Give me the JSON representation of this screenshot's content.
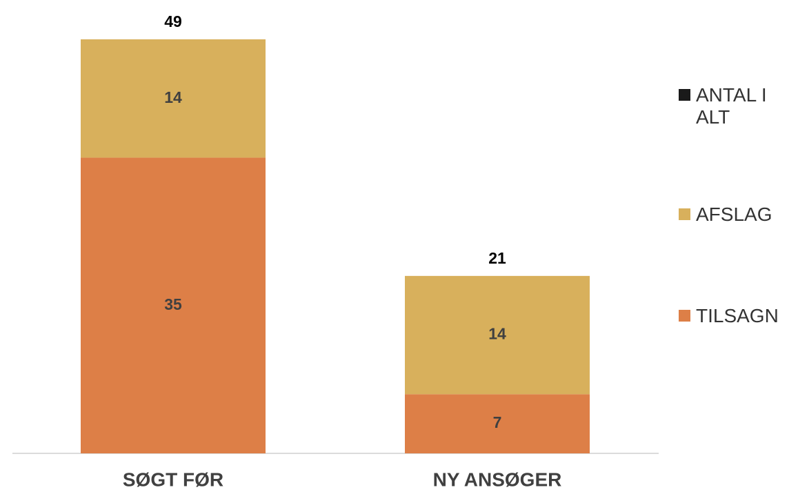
{
  "chart_data": {
    "type": "stacked_bar",
    "categories": [
      "SØGT FØR",
      "NY ANSØGER"
    ],
    "series": [
      {
        "name": "TILSAGN",
        "color": "#dd7f47",
        "values": [
          35,
          7
        ]
      },
      {
        "name": "AFSLAG",
        "color": "#d8b05c",
        "values": [
          14,
          14
        ]
      },
      {
        "name": "ANTAL I ALT",
        "color": "#1a1a1a",
        "values": [
          49,
          21
        ]
      }
    ],
    "legend": "right"
  }
}
